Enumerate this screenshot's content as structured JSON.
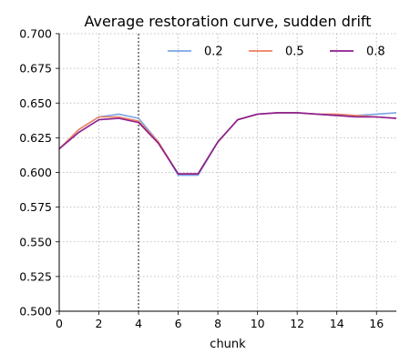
{
  "chart_data": {
    "type": "line",
    "title": "Average restoration curve, sudden drift",
    "xlabel": "chunk",
    "ylabel": "",
    "xlim": [
      0,
      17
    ],
    "ylim": [
      0.5,
      0.7
    ],
    "x_ticks": [
      0,
      2,
      4,
      6,
      8,
      10,
      12,
      14,
      16
    ],
    "y_ticks": [
      "0.500",
      "0.525",
      "0.550",
      "0.575",
      "0.600",
      "0.625",
      "0.650",
      "0.675",
      "0.700"
    ],
    "grid": true,
    "legend_position": "top-right",
    "drift_marker_x": 4,
    "x": [
      0,
      1,
      2,
      3,
      4,
      5,
      6,
      7,
      8,
      9,
      10,
      11,
      12,
      13,
      14,
      15,
      16,
      17
    ],
    "series": [
      {
        "name": "0.2",
        "color": "#7aa6e6",
        "values": [
          0.617,
          0.631,
          0.64,
          0.642,
          0.639,
          0.622,
          0.598,
          0.598,
          0.622,
          0.638,
          0.642,
          0.643,
          0.643,
          0.642,
          0.641,
          0.641,
          0.642,
          0.643
        ]
      },
      {
        "name": "0.5",
        "color": "#ef8060",
        "values": [
          0.617,
          0.631,
          0.64,
          0.64,
          0.637,
          0.622,
          0.599,
          0.599,
          0.622,
          0.638,
          0.642,
          0.643,
          0.643,
          0.642,
          0.642,
          0.641,
          0.64,
          0.639
        ]
      },
      {
        "name": "0.8",
        "color": "#8b1d8e",
        "values": [
          0.617,
          0.629,
          0.638,
          0.639,
          0.636,
          0.621,
          0.599,
          0.599,
          0.622,
          0.638,
          0.642,
          0.643,
          0.643,
          0.642,
          0.641,
          0.64,
          0.64,
          0.639
        ]
      }
    ]
  }
}
